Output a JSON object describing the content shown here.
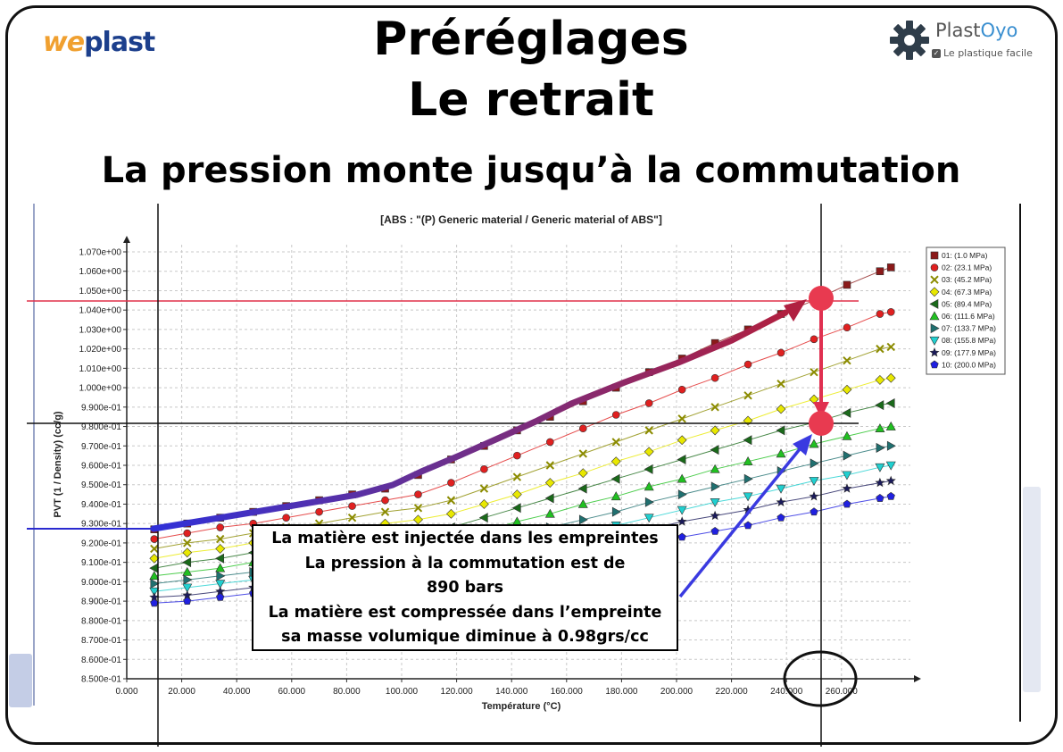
{
  "header": {
    "logo_left_we": "we",
    "logo_left_plast": "plast",
    "logo_right_plast": "Plast",
    "logo_right_oyo": "Oyo",
    "logo_right_tagline": "Le plastique facile",
    "title_line1": "Préréglages",
    "title_line2": "Le retrait",
    "subtitle": "La pression monte jusqu’à la commutation"
  },
  "callout": {
    "line1": "La matière est injectée dans les empreintes",
    "line2": "La pression à la commutation est de",
    "line3": "890 bars",
    "line4": "La matière est compressée dans l’empreinte",
    "line5": "sa masse volumique diminue à 0.98grs/cc"
  },
  "chart_data": {
    "type": "line",
    "title": "[ABS : \"(P)  Generic material / Generic material of ABS\"]",
    "xlabel": "Température (°C)",
    "ylabel": "PVT (1 / Density) (cc/g)",
    "xlim": [
      0,
      285
    ],
    "ylim": [
      0.85,
      1.07
    ],
    "grid": true,
    "legend_position": "right",
    "x_ticks": [
      "0.000",
      "20.000",
      "40.000",
      "60.000",
      "80.000",
      "100.000",
      "120.000",
      "140.000",
      "160.000",
      "180.000",
      "200.000",
      "220.000",
      "240.000",
      "260.000"
    ],
    "y_ticks": [
      "8.500e-01",
      "8.600e-01",
      "8.700e-01",
      "8.800e-01",
      "8.900e-01",
      "9.000e-01",
      "9.100e-01",
      "9.200e-01",
      "9.300e-01",
      "9.400e-01",
      "9.500e-01",
      "9.600e-01",
      "9.700e-01",
      "9.800e-01",
      "9.900e-01",
      "1.000e+00",
      "1.010e+00",
      "1.020e+00",
      "1.030e+00",
      "1.040e+00",
      "1.050e+00",
      "1.060e+00",
      "1.070e+00"
    ],
    "x": [
      10,
      22,
      34,
      46,
      58,
      70,
      82,
      94,
      106,
      118,
      130,
      142,
      154,
      166,
      178,
      190,
      202,
      214,
      226,
      238,
      250,
      262,
      274,
      278
    ],
    "series": [
      {
        "name": "01: (1.0 MPa)",
        "color": "#8b1a1a",
        "marker": "square",
        "values": [
          0.927,
          0.93,
          0.933,
          0.936,
          0.939,
          0.942,
          0.945,
          0.948,
          0.955,
          0.963,
          0.97,
          0.978,
          0.985,
          0.993,
          1.0,
          1.008,
          1.015,
          1.023,
          1.03,
          1.038,
          1.045,
          1.053,
          1.06,
          1.062
        ]
      },
      {
        "name": "02: (23.1 MPa)",
        "color": "#e02020",
        "marker": "circle",
        "values": [
          0.922,
          0.925,
          0.928,
          0.93,
          0.933,
          0.936,
          0.939,
          0.942,
          0.945,
          0.951,
          0.958,
          0.965,
          0.972,
          0.979,
          0.986,
          0.992,
          0.999,
          1.005,
          1.012,
          1.018,
          1.025,
          1.031,
          1.038,
          1.039
        ]
      },
      {
        "name": "03: (45.2 MPa)",
        "color": "#8b8b00",
        "marker": "x",
        "values": [
          0.917,
          0.92,
          0.922,
          0.925,
          0.928,
          0.93,
          0.933,
          0.936,
          0.938,
          0.942,
          0.948,
          0.954,
          0.96,
          0.966,
          0.972,
          0.978,
          0.984,
          0.99,
          0.996,
          1.002,
          1.008,
          1.014,
          1.02,
          1.021
        ]
      },
      {
        "name": "04: (67.3 MPa)",
        "color": "#e8e800",
        "marker": "diamond",
        "values": [
          0.912,
          0.915,
          0.917,
          0.92,
          0.922,
          0.925,
          0.927,
          0.93,
          0.932,
          0.935,
          0.94,
          0.945,
          0.951,
          0.956,
          0.962,
          0.967,
          0.973,
          0.978,
          0.983,
          0.989,
          0.994,
          0.999,
          1.004,
          1.005
        ]
      },
      {
        "name": "05: (89.4 MPa)",
        "color": "#1a6a1a",
        "marker": "tri-left",
        "values": [
          0.907,
          0.91,
          0.912,
          0.915,
          0.917,
          0.919,
          0.922,
          0.924,
          0.926,
          0.928,
          0.933,
          0.938,
          0.943,
          0.948,
          0.953,
          0.958,
          0.963,
          0.968,
          0.973,
          0.978,
          0.982,
          0.987,
          0.991,
          0.992
        ]
      },
      {
        "name": "06: (111.6 MPa)",
        "color": "#20c020",
        "marker": "tri-up",
        "values": [
          0.903,
          0.905,
          0.907,
          0.91,
          0.912,
          0.914,
          0.916,
          0.918,
          0.92,
          0.922,
          0.926,
          0.931,
          0.935,
          0.94,
          0.944,
          0.949,
          0.953,
          0.958,
          0.962,
          0.966,
          0.971,
          0.975,
          0.979,
          0.98
        ]
      },
      {
        "name": "07: (133.7 MPa)",
        "color": "#207070",
        "marker": "tri-right",
        "values": [
          0.899,
          0.901,
          0.903,
          0.905,
          0.907,
          0.909,
          0.911,
          0.913,
          0.915,
          0.917,
          0.92,
          0.924,
          0.928,
          0.932,
          0.936,
          0.941,
          0.945,
          0.949,
          0.953,
          0.957,
          0.961,
          0.965,
          0.969,
          0.97
        ]
      },
      {
        "name": "08: (155.8 MPa)",
        "color": "#20d0d0",
        "marker": "tri-down",
        "values": [
          0.895,
          0.897,
          0.899,
          0.901,
          0.903,
          0.905,
          0.907,
          0.909,
          0.91,
          0.912,
          0.915,
          0.918,
          0.922,
          0.926,
          0.929,
          0.933,
          0.937,
          0.941,
          0.944,
          0.948,
          0.952,
          0.955,
          0.959,
          0.96
        ]
      },
      {
        "name": "09: (177.9 MPa)",
        "color": "#1a1a5a",
        "marker": "star",
        "values": [
          0.892,
          0.893,
          0.895,
          0.897,
          0.899,
          0.901,
          0.902,
          0.904,
          0.906,
          0.907,
          0.91,
          0.913,
          0.917,
          0.92,
          0.924,
          0.927,
          0.931,
          0.934,
          0.937,
          0.941,
          0.944,
          0.948,
          0.951,
          0.952
        ]
      },
      {
        "name": "10: (200.0 MPa)",
        "color": "#2020e0",
        "marker": "pentagon",
        "values": [
          0.889,
          0.89,
          0.892,
          0.894,
          0.895,
          0.897,
          0.898,
          0.9,
          0.901,
          0.903,
          0.905,
          0.908,
          0.911,
          0.914,
          0.917,
          0.92,
          0.923,
          0.926,
          0.929,
          0.933,
          0.936,
          0.94,
          0.943,
          0.944
        ]
      }
    ]
  }
}
